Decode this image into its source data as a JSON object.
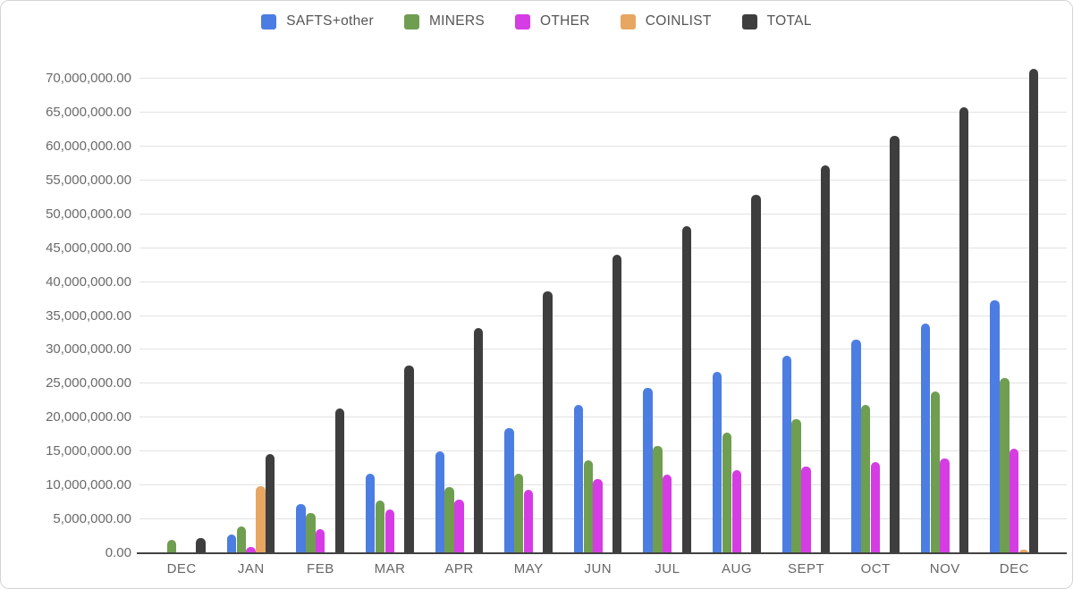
{
  "legend": {
    "items": [
      {
        "label": "SAFTS+other",
        "color": "#4c7de2"
      },
      {
        "label": "MINERS",
        "color": "#6f9e50"
      },
      {
        "label": "OTHER",
        "color": "#d53ce4"
      },
      {
        "label": "COINLIST",
        "color": "#e7a661"
      },
      {
        "label": "TOTAL",
        "color": "#3e3e3e"
      }
    ]
  },
  "chart_data": {
    "type": "bar",
    "title": "",
    "xlabel": "",
    "ylabel": "",
    "categories": [
      "DEC",
      "JAN",
      "FEB",
      "MAR",
      "APR",
      "MAY",
      "JUN",
      "JUL",
      "AUG",
      "SEPT",
      "OCT",
      "NOV",
      "DEC"
    ],
    "series": [
      {
        "name": "SAFTS+other",
        "color": "#4c7de2",
        "values": [
          0,
          2800000,
          7200000,
          11700000,
          15000000,
          18500000,
          21900000,
          24400000,
          26800000,
          29100000,
          31500000,
          33900000,
          37300000
        ]
      },
      {
        "name": "MINERS",
        "color": "#6f9e50",
        "values": [
          2000000,
          4000000,
          6000000,
          7800000,
          9700000,
          11800000,
          13700000,
          15800000,
          17800000,
          19800000,
          21900000,
          23900000,
          25900000
        ]
      },
      {
        "name": "OTHER",
        "color": "#d53ce4",
        "values": [
          0,
          900000,
          3500000,
          6400000,
          7900000,
          9400000,
          11000000,
          11600000,
          12200000,
          12800000,
          13400000,
          14000000,
          15400000
        ]
      },
      {
        "name": "COINLIST",
        "color": "#e7a661",
        "values": [
          0,
          9900000,
          0,
          0,
          0,
          0,
          0,
          0,
          0,
          0,
          0,
          0,
          500000
        ]
      },
      {
        "name": "TOTAL",
        "color": "#3e3e3e",
        "values": [
          2200000,
          14600000,
          21300000,
          27700000,
          33200000,
          38600000,
          44000000,
          48300000,
          52800000,
          57200000,
          61600000,
          65800000,
          71500000
        ]
      }
    ],
    "ylim": [
      0,
      70000000
    ],
    "ytick_step": 5000000,
    "ytick_format": "comma-2-decimals",
    "ytick_labels": [
      "0.00",
      "5,000,000.00",
      "10,000,000.00",
      "15,000,000.00",
      "20,000,000.00",
      "25,000,000.00",
      "30,000,000.00",
      "35,000,000.00",
      "40,000,000.00",
      "45,000,000.00",
      "50,000,000.00",
      "55,000,000.00",
      "60,000,000.00",
      "65,000,000.00",
      "70,000,000.00"
    ],
    "grid": true,
    "legend_position": "top",
    "colors": {
      "gridline": "#e2e2e2",
      "axis_baseline": "#424242",
      "axis_text": "#6a6a6a",
      "legend_text": "#555555",
      "background": "#ffffff"
    }
  }
}
